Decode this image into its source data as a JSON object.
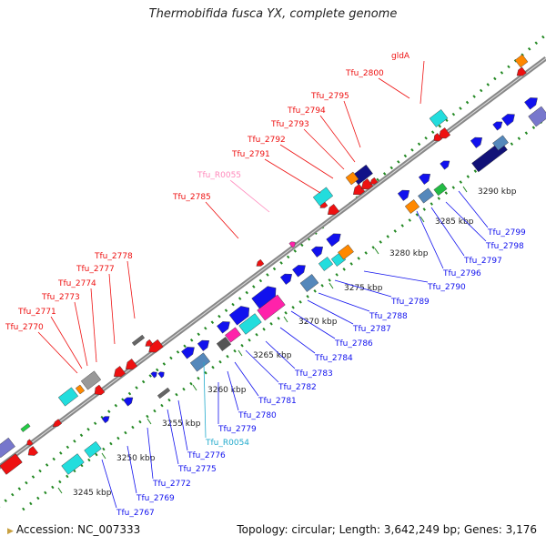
{
  "title": "Thermobifida fusca YX, complete genome",
  "footer": {
    "accession": "Accession: NC_007333",
    "topology": "Topology: circular; Length: 3,642,249 bp; Genes: 3,176"
  },
  "ticks": [
    "3245 kbp",
    "3250 kbp",
    "3255 kbp",
    "3260 kbp",
    "3265 kbp",
    "3270 kbp",
    "3275 kbp",
    "3280 kbp",
    "3285 kbp",
    "3290 kbp"
  ],
  "labels_top": [
    "Tfu_2770",
    "Tfu_2771",
    "Tfu_2773",
    "Tfu_2774",
    "Tfu_2777",
    "Tfu_2778",
    "Tfu_2785",
    "Tfu_R0055",
    "Tfu_2791",
    "Tfu_2792",
    "Tfu_2793",
    "Tfu_2794",
    "Tfu_2795",
    "Tfu_2800",
    "gldA"
  ],
  "labels_bottom": [
    "Tfu_2767",
    "Tfu_2769",
    "Tfu_2772",
    "Tfu_2775",
    "Tfu_2776",
    "Tfu_R0054",
    "Tfu_2779",
    "Tfu_2780",
    "Tfu_2781",
    "Tfu_2782",
    "Tfu_2783",
    "Tfu_2784",
    "Tfu_2786",
    "Tfu_2787",
    "Tfu_2788",
    "Tfu_2789",
    "Tfu_2790",
    "Tfu_2796",
    "Tfu_2797",
    "Tfu_2798",
    "Tfu_2799"
  ],
  "colors": {
    "reverse_strand_gene": "#ee1111",
    "forward_strand_gene": "#1111ee",
    "rna_gene": "#ff22aa",
    "trna_label": "#ff88bb",
    "ncrna_label": "#22aacc",
    "backbone": "#888888",
    "ticks": "#228822",
    "cyan_feature": "#22dddd",
    "orange_feature": "#ff8800",
    "steel_feature": "#5588bb",
    "grey_feature": "#999999"
  }
}
